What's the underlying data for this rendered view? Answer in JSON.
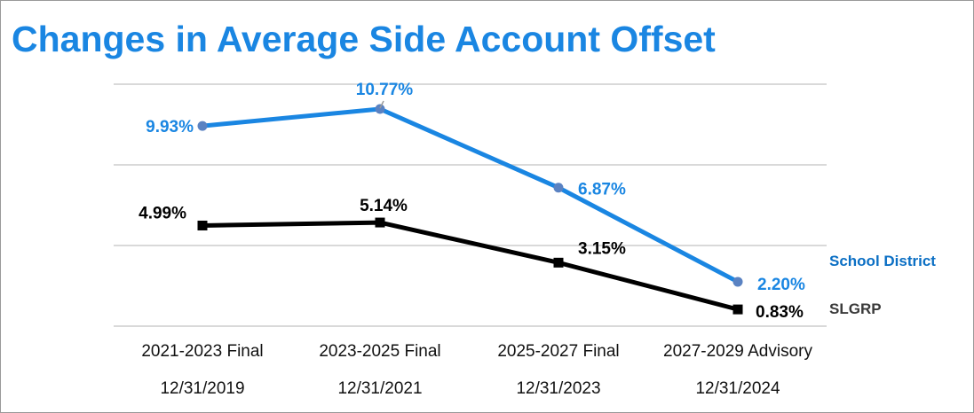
{
  "chart_data": {
    "type": "line",
    "title": "Changes in Average Side Account Offset",
    "categories": [
      [
        "2021-2023 Final",
        "12/31/2019"
      ],
      [
        "2023-2025 Final",
        "12/31/2021"
      ],
      [
        "2025-2027 Final",
        "12/31/2023"
      ],
      [
        "2027-2029 Advisory",
        "12/31/2024"
      ]
    ],
    "ylim": [
      0,
      12
    ],
    "gridlines": [
      0,
      4,
      8,
      12
    ],
    "grid": true,
    "legend_placement": "right",
    "series": [
      {
        "name": "School District",
        "values": [
          9.93,
          10.77,
          6.87,
          2.2
        ],
        "labels": [
          "9.93%",
          "10.77%",
          "6.87%",
          "2.20%"
        ],
        "color": "#1a86e2",
        "marker_color": "#5a82c2",
        "label_color": "#1a86e2",
        "legend_color": "#0b6fc4",
        "marker": "circle"
      },
      {
        "name": "SLGRP",
        "values": [
          4.99,
          5.14,
          3.15,
          0.83
        ],
        "labels": [
          "4.99%",
          "5.14%",
          "3.15%",
          "0.83%"
        ],
        "color": "#000000",
        "marker_color": "#000000",
        "label_color": "#000000",
        "legend_color": "#3a3a3a",
        "marker": "square"
      }
    ]
  }
}
